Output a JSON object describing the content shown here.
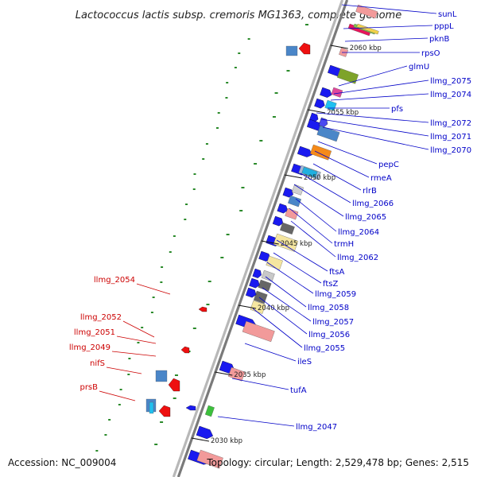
{
  "title": "Lactococcus lactis subsp. cremoris MG1363, complete genome",
  "footer": {
    "accession": "Accession: NC_009004",
    "topology": "Topology: circular; Length: 2,529,478 bp; Genes: 2,515"
  },
  "colors": {
    "forward_label": "#0000c8",
    "reverse_label": "#cc0000",
    "backbone": "#9a9a9a",
    "tick": "#2a8a2a"
  },
  "kbp_ticks": [
    "2060 kbp",
    "2055 kbp",
    "2050 kbp",
    "2045 kbp",
    "2040 kbp",
    "2035 kbp",
    "2030 kbp"
  ],
  "forward_labels": [
    "sunL",
    "pppL",
    "pknB",
    "rpsO",
    "glmU",
    "llmg_2075",
    "llmg_2074",
    "pfs",
    "llmg_2072",
    "llmg_2071",
    "llmg_2070",
    "pepC",
    "rmeA",
    "rlrB",
    "llmg_2066",
    "llmg_2065",
    "llmg_2064",
    "trmH",
    "llmg_2062",
    "ftsA",
    "ftsZ",
    "llmg_2059",
    "llmg_2058",
    "llmg_2057",
    "llmg_2056",
    "llmg_2055",
    "ileS",
    "tufA",
    "llmg_2047"
  ],
  "reverse_labels": [
    "llmg_2054",
    "llmg_2052",
    "llmg_2051",
    "llmg_2049",
    "nifS",
    "prsB"
  ]
}
